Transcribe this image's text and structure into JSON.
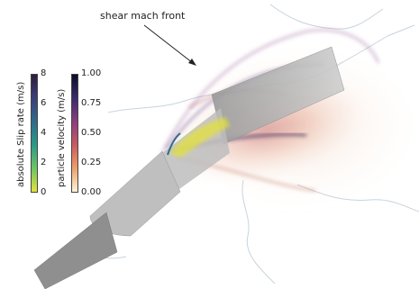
{
  "annotation": "shear mach front",
  "colorbars": [
    {
      "title": "absolute Slip rate (m/s)",
      "ticks": [
        "8",
        "6",
        "4",
        "2",
        "0"
      ],
      "colors": [
        "#2d1e3e",
        "#3b3f7a",
        "#2f6b8a",
        "#2a9a87",
        "#6dc463",
        "#e3e23b"
      ]
    },
    {
      "title": "particle velocity (m/s)",
      "ticks": [
        "1.00",
        "0.75",
        "0.50",
        "0.25",
        "0.00"
      ],
      "colors": [
        "#0b0d2a",
        "#3c2a6b",
        "#8a3d7e",
        "#c95a5f",
        "#eea06a",
        "#fff4d6"
      ]
    }
  ]
}
